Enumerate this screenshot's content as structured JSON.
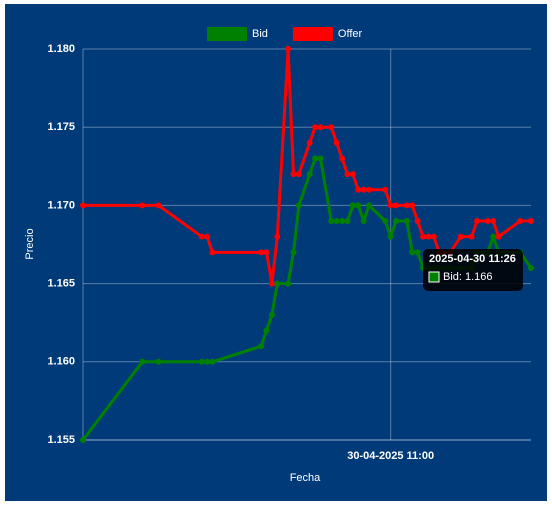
{
  "chart_data": {
    "type": "line",
    "x_label": "Fecha",
    "y_label": "Precio",
    "x": [
      "2025-04-30 10:03",
      "2025-04-30 10:14",
      "2025-04-30 10:17",
      "2025-04-30 10:25",
      "2025-04-30 10:26",
      "2025-04-30 10:27",
      "2025-04-30 10:36",
      "2025-04-30 10:37",
      "2025-04-30 10:38",
      "2025-04-30 10:39",
      "2025-04-30 10:41",
      "2025-04-30 10:42",
      "2025-04-30 10:43",
      "2025-04-30 10:45",
      "2025-04-30 10:46",
      "2025-04-30 10:47",
      "2025-04-30 10:49",
      "2025-04-30 10:50",
      "2025-04-30 10:51",
      "2025-04-30 10:52",
      "2025-04-30 10:53",
      "2025-04-30 10:54",
      "2025-04-30 10:55",
      "2025-04-30 10:56",
      "2025-04-30 10:59",
      "2025-04-30 11:00",
      "2025-04-30 11:01",
      "2025-04-30 11:03",
      "2025-04-30 11:04",
      "2025-04-30 11:05",
      "2025-04-30 11:06",
      "2025-04-30 11:07",
      "2025-04-30 11:08",
      "2025-04-30 11:09",
      "2025-04-30 11:11",
      "2025-04-30 11:13",
      "2025-04-30 11:15",
      "2025-04-30 11:16",
      "2025-04-30 11:18",
      "2025-04-30 11:19",
      "2025-04-30 11:20",
      "2025-04-30 11:24",
      "2025-04-30 11:26"
    ],
    "series": [
      {
        "name": "Bid",
        "color": "#008000",
        "values": [
          1.155,
          1.16,
          1.16,
          1.16,
          1.16,
          1.16,
          1.161,
          1.162,
          1.163,
          1.165,
          1.165,
          1.167,
          1.17,
          1.172,
          1.173,
          1.173,
          1.169,
          1.169,
          1.169,
          1.169,
          1.17,
          1.17,
          1.169,
          1.17,
          1.169,
          1.168,
          1.169,
          1.169,
          1.167,
          1.167,
          1.166,
          1.166,
          1.166,
          1.166,
          1.166,
          1.166,
          1.166,
          1.167,
          1.167,
          1.168,
          1.167,
          1.167,
          1.166
        ]
      },
      {
        "name": "Offer",
        "color": "#ff0000",
        "values": [
          1.17,
          1.17,
          1.17,
          1.168,
          1.168,
          1.167,
          1.167,
          1.167,
          1.165,
          1.168,
          1.18,
          1.172,
          1.172,
          1.174,
          1.175,
          1.175,
          1.175,
          1.174,
          1.173,
          1.172,
          1.172,
          1.171,
          1.171,
          1.171,
          1.171,
          1.17,
          1.17,
          1.17,
          1.17,
          1.169,
          1.168,
          1.168,
          1.168,
          1.167,
          1.167,
          1.168,
          1.168,
          1.169,
          1.169,
          1.169,
          1.168,
          1.169,
          1.169
        ]
      }
    ],
    "xlim": [
      "2025-04-30 10:03",
      "2025-04-30 11:26"
    ],
    "xticks": [
      {
        "value": "2025-04-30 11:00",
        "label": "30-04-2025 11:00"
      }
    ],
    "ylim": [
      1.155,
      1.18
    ],
    "yticks": [
      1.155,
      {
        "value": 1.16,
        "label": "1.160"
      },
      1.165,
      {
        "value": 1.17,
        "label": "1.170"
      },
      1.175,
      {
        "value": 1.18,
        "label": "1.180"
      }
    ],
    "grid": true,
    "legend": "top",
    "tooltip": {
      "title": "2025-04-30 11:26",
      "text": "Bid: 1.166"
    }
  }
}
